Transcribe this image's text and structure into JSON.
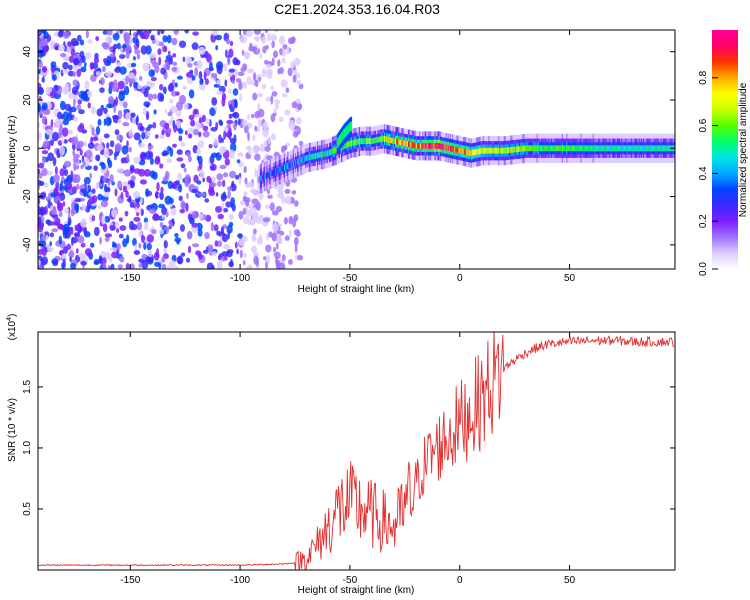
{
  "title": "C2E1.2024.353.16.04.R03",
  "colors": {
    "snr_line": "#e23030",
    "axis": "#000000",
    "colormap": [
      "#ffffff",
      "#ddccff",
      "#a070ff",
      "#7b1fff",
      "#3a2aff",
      "#0044ff",
      "#00a8ff",
      "#00e5e5",
      "#00ff66",
      "#55ff00",
      "#ccff00",
      "#ffff00",
      "#ffaa00",
      "#ff3300",
      "#ff0066",
      "#ff0099"
    ]
  },
  "chart_data": [
    {
      "type": "heatmap",
      "xlabel": "Height of straight line (km)",
      "ylabel": "Frequency (Hz)",
      "xlim": [
        -192,
        98
      ],
      "ylim": [
        -50,
        49
      ],
      "xticks": [
        -150,
        -100,
        -50,
        0,
        50
      ],
      "yticks": [
        -40,
        -20,
        0,
        20,
        40
      ],
      "colorbar": {
        "label": "Normalized spectral amplitude",
        "range": [
          0.0,
          1.0
        ],
        "ticks": [
          0.0,
          0.2,
          0.4,
          0.6,
          0.8
        ]
      },
      "signal_ridge": {
        "x": [
          -92,
          -85,
          -80,
          -75,
          -70,
          -65,
          -60,
          -55,
          -50,
          -45,
          -40,
          -35,
          -30,
          -25,
          -20,
          -15,
          -10,
          -5,
          0,
          5,
          10,
          20,
          30,
          50,
          70,
          98
        ],
        "y": [
          -13,
          -10,
          -8,
          -6,
          -4,
          -3,
          -2,
          0,
          2,
          3,
          3,
          4,
          3,
          2,
          1,
          1,
          1,
          0,
          -1,
          -2,
          -1,
          -1,
          0,
          0,
          0,
          0
        ],
        "amplitude": [
          0.25,
          0.3,
          0.35,
          0.4,
          0.45,
          0.5,
          0.5,
          0.55,
          0.55,
          0.6,
          0.6,
          0.65,
          0.75,
          0.8,
          0.85,
          0.9,
          0.95,
          0.9,
          0.85,
          0.75,
          0.7,
          0.65,
          0.6,
          0.55,
          0.5,
          0.5
        ]
      },
      "branch": {
        "x": [
          -56,
          -53,
          -50
        ],
        "y": [
          2,
          6,
          9
        ]
      }
    },
    {
      "type": "line",
      "xlabel": "Height of straight line (km)",
      "ylabel": "SNR (10 * v/v)",
      "multiplier_label": "(x10",
      "multiplier_exponent": "4",
      "multiplier_close": ")",
      "xlim": [
        -192,
        98
      ],
      "ylim": [
        0,
        1.95
      ],
      "xticks": [
        -150,
        -100,
        -50,
        0,
        50
      ],
      "yticks": [
        0.5,
        1.0,
        1.5
      ],
      "series": [
        {
          "x": [
            -192,
            -150,
            -100,
            -80,
            -75,
            -70,
            -65,
            -60,
            -55,
            -50,
            -45,
            -40,
            -35,
            -30,
            -25,
            -20,
            -15,
            -10,
            -5,
            0,
            5,
            10,
            15,
            20,
            25,
            30,
            35,
            40,
            50,
            60,
            70,
            80,
            98
          ],
          "y": [
            0.04,
            0.04,
            0.04,
            0.05,
            0.06,
            0.1,
            0.2,
            0.35,
            0.5,
            0.55,
            0.5,
            0.45,
            0.4,
            0.35,
            0.5,
            0.7,
            0.9,
            1.0,
            1.1,
            1.2,
            1.3,
            1.4,
            1.55,
            1.65,
            1.72,
            1.78,
            1.82,
            1.85,
            1.87,
            1.88,
            1.88,
            1.87,
            1.87
          ]
        }
      ]
    }
  ]
}
